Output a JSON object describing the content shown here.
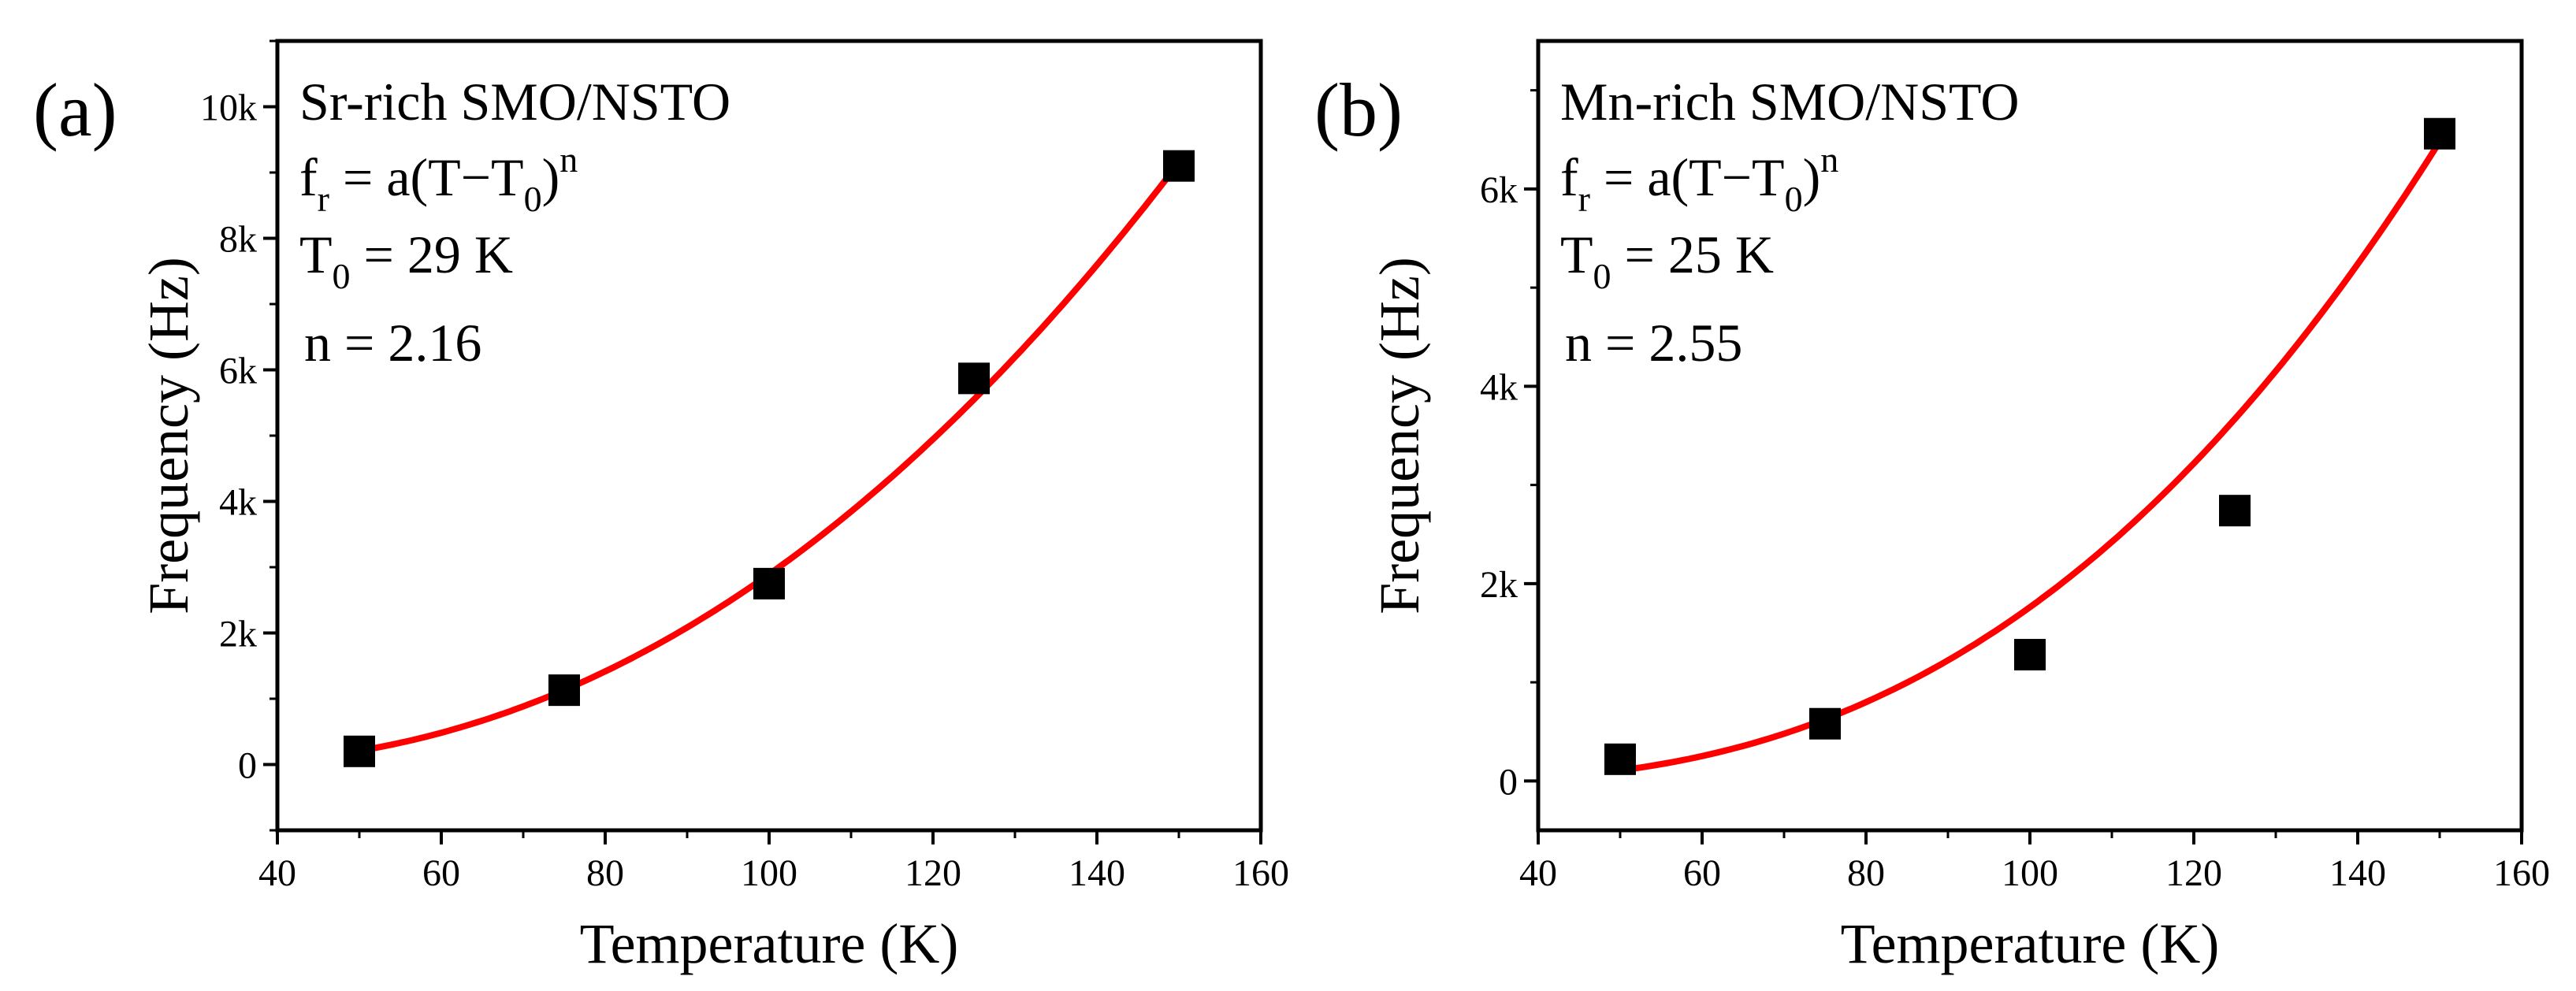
{
  "chart_data": [
    {
      "type": "scatter",
      "panel_label": "(a)",
      "xlabel": "Temperature (K)",
      "ylabel": "Frequency (Hz)",
      "xlim": [
        40,
        160
      ],
      "ylim": [
        -1000,
        11000
      ],
      "xticks": [
        40,
        60,
        80,
        100,
        120,
        140,
        160
      ],
      "xtick_labels": [
        "40",
        "60",
        "80",
        "100",
        "120",
        "140",
        "160"
      ],
      "yticks": [
        0,
        2000,
        4000,
        6000,
        8000,
        10000
      ],
      "ytick_labels": [
        "0",
        "2k",
        "4k",
        "6k",
        "8k",
        "10k"
      ],
      "series": [
        {
          "name": "data",
          "marker": "square",
          "color": "#000000",
          "x": [
            50,
            75,
            100,
            125,
            150
          ],
          "y": [
            200,
            1130,
            2750,
            5870,
            9100
          ]
        },
        {
          "name": "fit",
          "kind": "line",
          "color": "#ff0000",
          "T0": 29,
          "n": 2.16,
          "x_range": [
            50,
            150
          ],
          "y_at_end": 9150
        }
      ],
      "annotation": {
        "title": "Sr-rich SMO/NSTO",
        "eq_f": "f",
        "eq_r": "r",
        "eq_mid": " = a(T−T",
        "eq_0": "0",
        "eq_close": ")",
        "eq_n": "n",
        "t0_T": "T",
        "t0_sub": "0",
        "t0_val": " = 29 K",
        "n_line": "n = 2.16"
      }
    },
    {
      "type": "scatter",
      "panel_label": "(b)",
      "xlabel": "Temperature (K)",
      "ylabel": "Frequency (Hz)",
      "xlim": [
        40,
        160
      ],
      "ylim": [
        -500,
        7500
      ],
      "xticks": [
        40,
        60,
        80,
        100,
        120,
        140,
        160
      ],
      "xtick_labels": [
        "40",
        "60",
        "80",
        "100",
        "120",
        "140",
        "160"
      ],
      "yticks": [
        0,
        2000,
        4000,
        6000
      ],
      "ytick_labels": [
        "0",
        "2k",
        "4k",
        "6k"
      ],
      "series": [
        {
          "name": "data",
          "marker": "square",
          "color": "#000000",
          "x": [
            50,
            75,
            100,
            125,
            150
          ],
          "y": [
            220,
            580,
            1280,
            2740,
            6560
          ]
        },
        {
          "name": "fit",
          "kind": "line",
          "color": "#ff0000",
          "T0": 25,
          "n": 2.55,
          "x_range": [
            50,
            150
          ],
          "y_at_end": 6480
        }
      ],
      "annotation": {
        "title": "Mn-rich SMO/NSTO",
        "eq_f": "f",
        "eq_r": "r",
        "eq_mid": " = a(T−T",
        "eq_0": "0",
        "eq_close": ")",
        "eq_n": "n",
        "t0_T": "T",
        "t0_sub": "0",
        "t0_val": " = 25 K",
        "n_line": "n = 2.55"
      }
    }
  ]
}
